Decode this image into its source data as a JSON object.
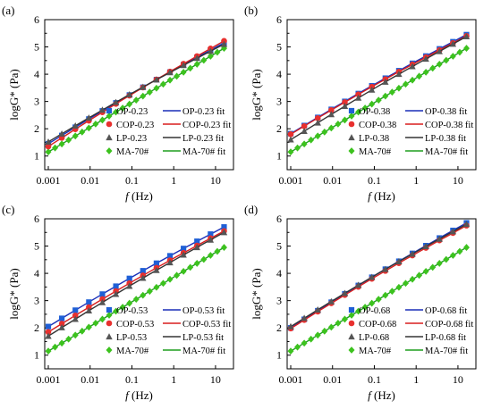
{
  "colors": {
    "OP": "#1f5fd6",
    "COP": "#e8302e",
    "LP": "#555555",
    "MA": "#3cc21e",
    "OP_fit": "#1a2fb8",
    "COP_fit": "#d81e1e",
    "LP_fit": "#333333",
    "MA_fit": "#1e9e1e"
  },
  "chart_data": [
    {
      "type": "scatter",
      "panel_label": "(a)",
      "xlabel_italic": "f",
      "xlabel_rest": "(Hz)",
      "ylabel": "logG* (Pa)",
      "xscale": "log",
      "xlim": [
        0.001,
        20
      ],
      "ylim": [
        0.5,
        6
      ],
      "x_ticks": [
        "0.001",
        "0.01",
        "0.1",
        "1",
        "10"
      ],
      "y_ticks": [
        "1",
        "2",
        "3",
        "4",
        "5",
        "6"
      ],
      "legend_position": "bottom-right",
      "series": [
        {
          "name": "OP-0.23",
          "fit_name": "OP-0.23 fit",
          "marker": "square",
          "color_key": "OP",
          "fit_color_key": "OP_fit",
          "y_start": 1.45,
          "y_end": 5.15
        },
        {
          "name": "COP-0.23",
          "fit_name": "COP-0.23 fit",
          "marker": "circle",
          "color_key": "COP",
          "fit_color_key": "COP_fit",
          "y_start": 1.35,
          "y_end": 5.22
        },
        {
          "name": "LP-0.23",
          "fit_name": "LP-0.23 fit",
          "marker": "triangle",
          "color_key": "LP",
          "fit_color_key": "LP_fit",
          "y_start": 1.52,
          "y_end": 5.1
        },
        {
          "name": "MA-70#",
          "fit_name": "MA-70# fit",
          "marker": "diamond",
          "color_key": "MA",
          "fit_color_key": "MA_fit",
          "y_start": 1.15,
          "y_end": 4.95
        }
      ]
    },
    {
      "type": "scatter",
      "panel_label": "(b)",
      "xlabel_italic": "f",
      "xlabel_rest": "(Hz)",
      "ylabel": "logG* (Pa)",
      "xscale": "log",
      "xlim": [
        0.001,
        20
      ],
      "ylim": [
        0.5,
        6
      ],
      "x_ticks": [
        "0.001",
        "0.01",
        "0.1",
        "1",
        "10"
      ],
      "y_ticks": [
        "1",
        "2",
        "3",
        "4",
        "5",
        "6"
      ],
      "legend_position": "bottom-right",
      "series": [
        {
          "name": "OP-0.38",
          "fit_name": "OP-0.38 fit",
          "marker": "square",
          "color_key": "OP",
          "fit_color_key": "OP_fit",
          "y_start": 1.82,
          "y_end": 5.45
        },
        {
          "name": "COP-0.38",
          "fit_name": "COP-0.38 fit",
          "marker": "circle",
          "color_key": "COP",
          "fit_color_key": "COP_fit",
          "y_start": 1.8,
          "y_end": 5.4
        },
        {
          "name": "LP-0.38",
          "fit_name": "LP-0.38 fit",
          "marker": "triangle",
          "color_key": "LP",
          "fit_color_key": "LP_fit",
          "y_start": 1.6,
          "y_end": 5.38
        },
        {
          "name": "MA-70#",
          "fit_name": "MA-70# fit",
          "marker": "diamond",
          "color_key": "MA",
          "fit_color_key": "MA_fit",
          "y_start": 1.15,
          "y_end": 4.95
        }
      ]
    },
    {
      "type": "scatter",
      "panel_label": "(c)",
      "xlabel_italic": "f",
      "xlabel_rest": "(Hz)",
      "ylabel": "logG* (Pa)",
      "xscale": "log",
      "xlim": [
        0.001,
        20
      ],
      "ylim": [
        0.5,
        6
      ],
      "x_ticks": [
        "0.001",
        "0.01",
        "0.1",
        "1",
        "10"
      ],
      "y_ticks": [
        "1",
        "2",
        "3",
        "4",
        "5",
        "6"
      ],
      "legend_position": "bottom-right",
      "series": [
        {
          "name": "OP-0.53",
          "fit_name": "OP-0.53 fit",
          "marker": "square",
          "color_key": "OP",
          "fit_color_key": "OP_fit",
          "y_start": 2.05,
          "y_end": 5.7
        },
        {
          "name": "COP-0.53",
          "fit_name": "COP-0.53 fit",
          "marker": "circle",
          "color_key": "COP",
          "fit_color_key": "COP_fit",
          "y_start": 1.85,
          "y_end": 5.55
        },
        {
          "name": "LP-0.53",
          "fit_name": "LP-0.53 fit",
          "marker": "triangle",
          "color_key": "LP",
          "fit_color_key": "LP_fit",
          "y_start": 1.7,
          "y_end": 5.5
        },
        {
          "name": "MA-70#",
          "fit_name": "MA-70# fit",
          "marker": "diamond",
          "color_key": "MA",
          "fit_color_key": "MA_fit",
          "y_start": 1.15,
          "y_end": 4.95
        }
      ]
    },
    {
      "type": "scatter",
      "panel_label": "(d)",
      "xlabel_italic": "f",
      "xlabel_rest": "(Hz)",
      "ylabel": "logG* (Pa)",
      "xscale": "log",
      "xlim": [
        0.001,
        20
      ],
      "ylim": [
        0.5,
        6
      ],
      "x_ticks": [
        "0.001",
        "0.01",
        "0.1",
        "1",
        "10"
      ],
      "y_ticks": [
        "1",
        "2",
        "3",
        "4",
        "5",
        "6"
      ],
      "legend_position": "bottom-right",
      "series": [
        {
          "name": "OP-0.68",
          "fit_name": "OP-0.68 fit",
          "marker": "square",
          "color_key": "OP",
          "fit_color_key": "OP_fit",
          "y_start": 2.0,
          "y_end": 5.85
        },
        {
          "name": "COP-0.68",
          "fit_name": "COP-0.68 fit",
          "marker": "circle",
          "color_key": "COP",
          "fit_color_key": "COP_fit",
          "y_start": 1.98,
          "y_end": 5.75
        },
        {
          "name": "LP-0.68",
          "fit_name": "LP-0.68 fit",
          "marker": "triangle",
          "color_key": "LP",
          "fit_color_key": "LP_fit",
          "y_start": 2.05,
          "y_end": 5.8
        },
        {
          "name": "MA-70#",
          "fit_name": "MA-70# fit",
          "marker": "diamond",
          "color_key": "MA",
          "fit_color_key": "MA_fit",
          "y_start": 1.15,
          "y_end": 4.95
        }
      ]
    }
  ]
}
